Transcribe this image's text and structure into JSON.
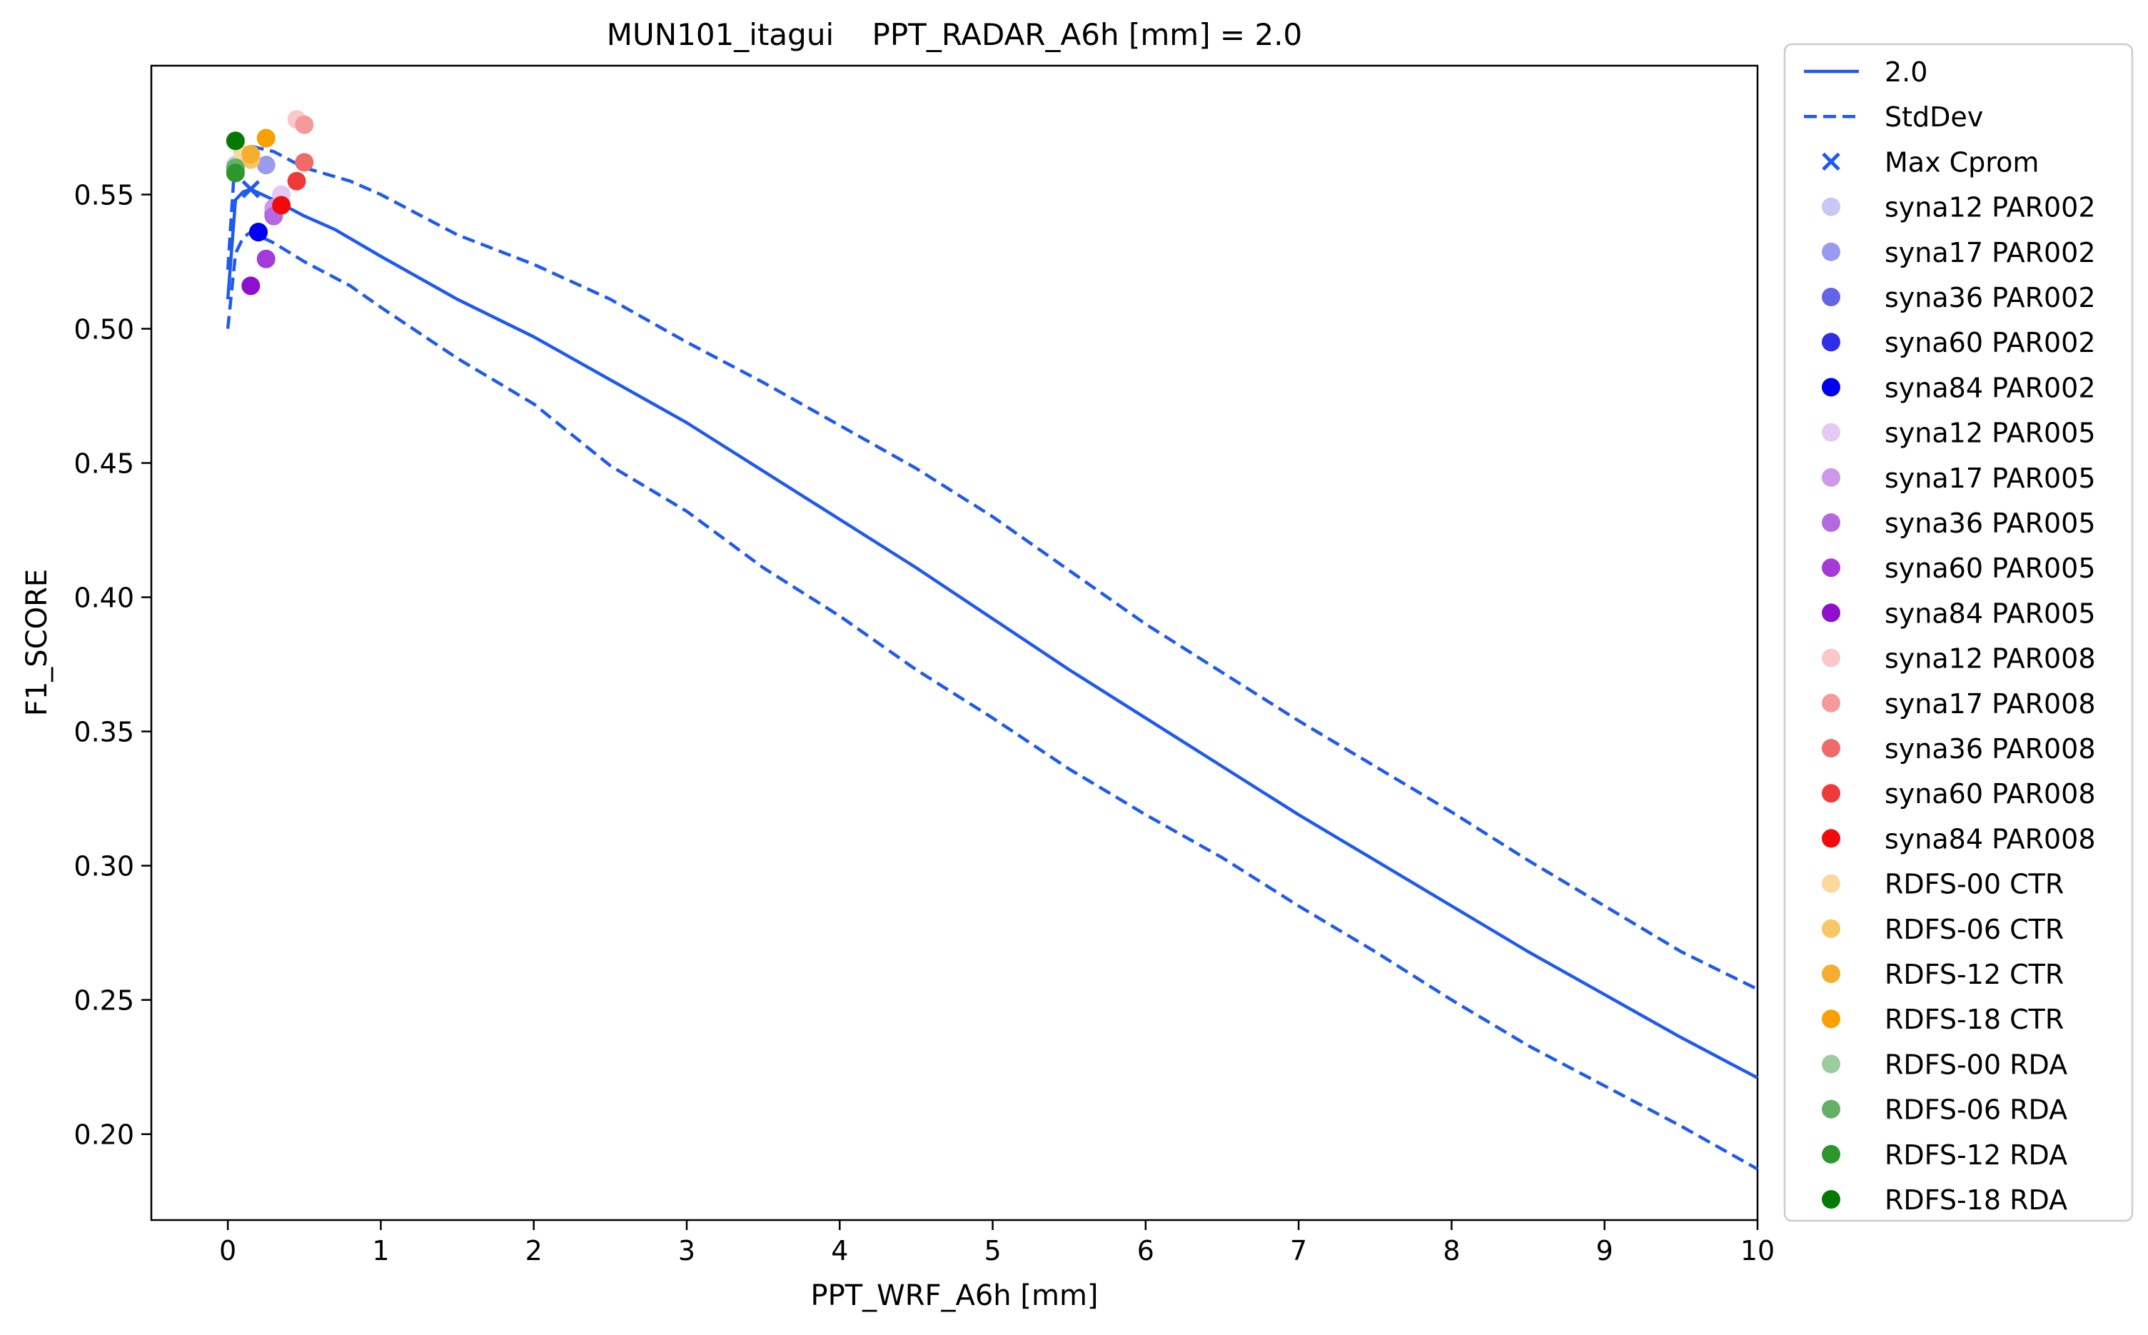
{
  "chart_data": {
    "type": "line",
    "title": "MUN101_itagui    PPT_RADAR_A6h [mm] = 2.0",
    "xlabel": "PPT_WRF_A6h [mm]",
    "ylabel": "F1_SCORE",
    "xlim": [
      -0.5,
      10
    ],
    "ylim": [
      0.168,
      0.598
    ],
    "xticks": [
      0,
      1,
      2,
      3,
      4,
      5,
      6,
      7,
      8,
      9,
      10
    ],
    "yticks": [
      0.2,
      0.25,
      0.3,
      0.35,
      0.4,
      0.45,
      0.5,
      0.55
    ],
    "ytick_labels": [
      "0.20",
      "0.25",
      "0.30",
      "0.35",
      "0.40",
      "0.45",
      "0.50",
      "0.55"
    ],
    "legend_position": "outside-right",
    "series": [
      {
        "name": "2.0",
        "style": "solid",
        "color": "#1f5af0",
        "points": [
          [
            0,
            0.511
          ],
          [
            0.05,
            0.548
          ],
          [
            0.1,
            0.551
          ],
          [
            0.15,
            0.552
          ],
          [
            0.3,
            0.548
          ],
          [
            0.5,
            0.542
          ],
          [
            0.7,
            0.537
          ],
          [
            1,
            0.527
          ],
          [
            1.5,
            0.511
          ],
          [
            2,
            0.497
          ],
          [
            2.5,
            0.481
          ],
          [
            3,
            0.465
          ],
          [
            3.5,
            0.447
          ],
          [
            4,
            0.429
          ],
          [
            4.5,
            0.411
          ],
          [
            5,
            0.392
          ],
          [
            5.5,
            0.373
          ],
          [
            6,
            0.355
          ],
          [
            6.5,
            0.337
          ],
          [
            7,
            0.319
          ],
          [
            7.5,
            0.302
          ],
          [
            8,
            0.285
          ],
          [
            8.5,
            0.268
          ],
          [
            9,
            0.252
          ],
          [
            9.5,
            0.236
          ],
          [
            10,
            0.221
          ]
        ]
      },
      {
        "name": "StdDev",
        "style": "dashed",
        "color": "#1f5af0",
        "points": [
          [
            0,
            0.5
          ],
          [
            0.05,
            0.528
          ],
          [
            0.1,
            0.534
          ],
          [
            0.15,
            0.536
          ],
          [
            0.3,
            0.532
          ],
          [
            0.5,
            0.525
          ],
          [
            0.8,
            0.516
          ],
          [
            1,
            0.508
          ],
          [
            1.5,
            0.489
          ],
          [
            2,
            0.472
          ],
          [
            2.5,
            0.449
          ],
          [
            3,
            0.432
          ],
          [
            3.5,
            0.411
          ],
          [
            4,
            0.393
          ],
          [
            4.5,
            0.373
          ],
          [
            5,
            0.355
          ],
          [
            5.5,
            0.336
          ],
          [
            6,
            0.319
          ],
          [
            6.5,
            0.303
          ],
          [
            7,
            0.285
          ],
          [
            7.5,
            0.268
          ],
          [
            8,
            0.25
          ],
          [
            8.5,
            0.233
          ],
          [
            9,
            0.218
          ],
          [
            9.5,
            0.203
          ],
          [
            10,
            0.187
          ]
        ]
      },
      {
        "name": "StdDev-upper",
        "style": "dashed",
        "color": "#1f5af0",
        "points": [
          [
            0,
            0.522
          ],
          [
            0.05,
            0.566
          ],
          [
            0.1,
            0.567
          ],
          [
            0.15,
            0.568
          ],
          [
            0.3,
            0.566
          ],
          [
            0.5,
            0.56
          ],
          [
            0.8,
            0.555
          ],
          [
            1,
            0.55
          ],
          [
            1.5,
            0.535
          ],
          [
            2,
            0.524
          ],
          [
            2.5,
            0.511
          ],
          [
            3,
            0.495
          ],
          [
            3.5,
            0.48
          ],
          [
            4,
            0.464
          ],
          [
            4.5,
            0.448
          ],
          [
            5,
            0.43
          ],
          [
            5.5,
            0.41
          ],
          [
            6,
            0.39
          ],
          [
            6.5,
            0.372
          ],
          [
            7,
            0.354
          ],
          [
            7.5,
            0.337
          ],
          [
            8,
            0.32
          ],
          [
            8.5,
            0.302
          ],
          [
            9,
            0.285
          ],
          [
            9.5,
            0.268
          ],
          [
            10,
            0.254
          ]
        ]
      }
    ],
    "max_point": {
      "name": "Max Cprom",
      "x": 0.15,
      "y": 0.552,
      "color": "#1f5af0"
    },
    "scatter": [
      {
        "name": "syna12 PAR002",
        "color": "#c8c8f5",
        "x": 0.05,
        "y": 0.561
      },
      {
        "name": "syna17 PAR002",
        "color": "#9a9aee",
        "x": 0.25,
        "y": 0.561
      },
      {
        "name": "syna36 PAR002",
        "color": "#6464ea",
        "x": 0.3,
        "y": 0.543
      },
      {
        "name": "syna60 PAR002",
        "color": "#2e2ee6",
        "x": 0.2,
        "y": 0.536
      },
      {
        "name": "syna84 PAR002",
        "color": "#0000f0",
        "x": 0.2,
        "y": 0.536
      },
      {
        "name": "syna12 PAR005",
        "color": "#e6c8f5",
        "x": 0.35,
        "y": 0.55
      },
      {
        "name": "syna17 PAR005",
        "color": "#cf98ea",
        "x": 0.3,
        "y": 0.545
      },
      {
        "name": "syna36 PAR005",
        "color": "#b469e0",
        "x": 0.3,
        "y": 0.542
      },
      {
        "name": "syna60 PAR005",
        "color": "#a53ad9",
        "x": 0.25,
        "y": 0.526
      },
      {
        "name": "syna84 PAR005",
        "color": "#8e0fcc",
        "x": 0.15,
        "y": 0.516
      },
      {
        "name": "syna12 PAR008",
        "color": "#fac8c8",
        "x": 0.45,
        "y": 0.578
      },
      {
        "name": "syna17 PAR008",
        "color": "#f59a9a",
        "x": 0.5,
        "y": 0.576
      },
      {
        "name": "syna36 PAR008",
        "color": "#f06a6a",
        "x": 0.5,
        "y": 0.562
      },
      {
        "name": "syna60 PAR008",
        "color": "#f03a3a",
        "x": 0.45,
        "y": 0.555
      },
      {
        "name": "syna84 PAR008",
        "color": "#f00a0a",
        "x": 0.35,
        "y": 0.546
      },
      {
        "name": "RDFS-00 CTR",
        "color": "#fbd89c",
        "x": 0.1,
        "y": 0.565
      },
      {
        "name": "RDFS-06 CTR",
        "color": "#f7c667",
        "x": 0.15,
        "y": 0.563
      },
      {
        "name": "RDFS-12 CTR",
        "color": "#f6ae31",
        "x": 0.15,
        "y": 0.565
      },
      {
        "name": "RDFS-18 CTR",
        "color": "#f7a000",
        "x": 0.25,
        "y": 0.571
      },
      {
        "name": "RDFS-00 RDA",
        "color": "#9ccc9c",
        "x": 0.05,
        "y": 0.559
      },
      {
        "name": "RDFS-06 RDA",
        "color": "#64b064",
        "x": 0.05,
        "y": 0.56
      },
      {
        "name": "RDFS-12 RDA",
        "color": "#2e962e",
        "x": 0.05,
        "y": 0.558
      },
      {
        "name": "RDFS-18 RDA",
        "color": "#047a04",
        "x": 0.05,
        "y": 0.57
      }
    ]
  }
}
